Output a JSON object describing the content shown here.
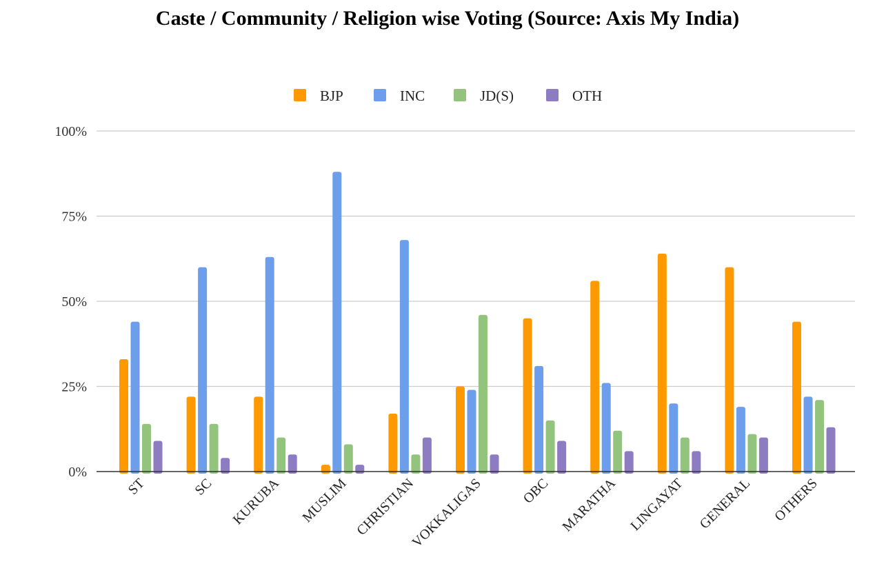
{
  "chart_data": {
    "type": "bar",
    "title": "Caste / Community / Religion wise Voting (Source: Axis My India)",
    "xlabel": "",
    "ylabel": "",
    "ylim": [
      0,
      100
    ],
    "yticks": [
      "0%",
      "25%",
      "50%",
      "75%",
      "100%"
    ],
    "ytick_values": [
      0,
      25,
      50,
      75,
      100
    ],
    "grid": true,
    "legend": "top-center",
    "categories": [
      "ST",
      "SC",
      "KURUBA",
      "MUSLIM",
      "CHRISTIAN",
      "VOKKALIGAS",
      "OBC",
      "MARATHA",
      "LINGAYAT",
      "GENERAL",
      "OTHERS"
    ],
    "series": [
      {
        "name": "BJP",
        "color": "#ff9900",
        "values": [
          33,
          22,
          22,
          2,
          17,
          25,
          45,
          56,
          64,
          60,
          44
        ]
      },
      {
        "name": "INC",
        "color": "#6d9eeb",
        "values": [
          44,
          60,
          63,
          88,
          68,
          24,
          31,
          26,
          20,
          19,
          22
        ]
      },
      {
        "name": "JD(S)",
        "color": "#93c47d",
        "values": [
          14,
          14,
          10,
          8,
          5,
          46,
          15,
          12,
          10,
          11,
          21
        ]
      },
      {
        "name": "OTH",
        "color": "#8e7cc3",
        "values": [
          9,
          4,
          5,
          2,
          10,
          5,
          9,
          6,
          6,
          10,
          13
        ]
      }
    ]
  }
}
